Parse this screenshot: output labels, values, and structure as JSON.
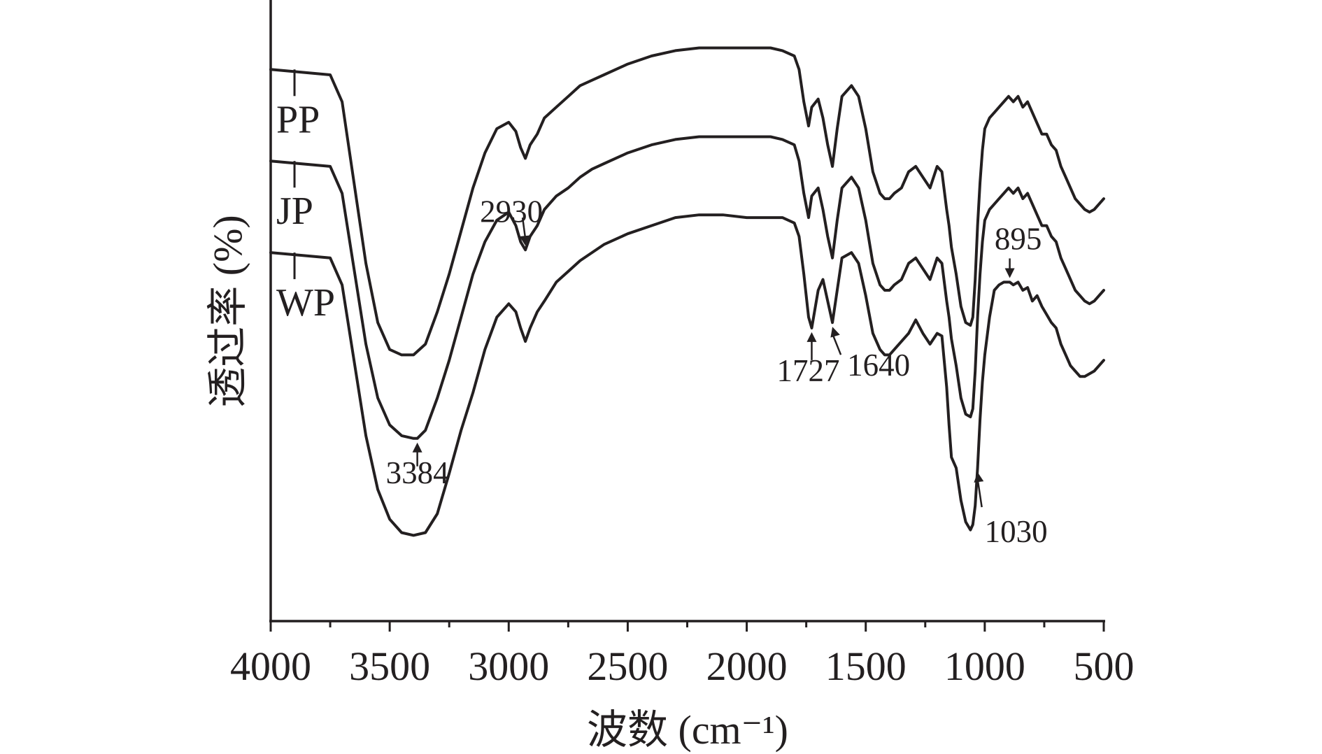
{
  "chart_data": {
    "type": "line",
    "xlabel": "波数 (cm⁻¹)",
    "ylabel": "透过率 (%)",
    "xlim": [
      4000,
      500
    ],
    "x_reversed": true,
    "xticks": [
      "4000",
      "3500",
      "3000",
      "2500",
      "2000",
      "1500",
      "1000",
      "500"
    ],
    "yticks_shown": false,
    "grid": false,
    "series": [
      {
        "name": "PP",
        "x": [
          4000,
          3750,
          3700,
          3650,
          3600,
          3550,
          3500,
          3450,
          3400,
          3350,
          3300,
          3250,
          3200,
          3150,
          3100,
          3050,
          3000,
          2970,
          2950,
          2930,
          2910,
          2880,
          2850,
          2800,
          2750,
          2700,
          2650,
          2600,
          2500,
          2400,
          2300,
          2200,
          2100,
          2000,
          1900,
          1850,
          1800,
          1780,
          1760,
          1740,
          1727,
          1700,
          1680,
          1660,
          1640,
          1620,
          1600,
          1560,
          1530,
          1500,
          1470,
          1440,
          1420,
          1400,
          1380,
          1350,
          1320,
          1290,
          1260,
          1230,
          1200,
          1180,
          1160,
          1150,
          1140,
          1120,
          1100,
          1080,
          1060,
          1050,
          1040,
          1030,
          1020,
          1010,
          1000,
          980,
          960,
          940,
          920,
          900,
          880,
          860,
          840,
          820,
          800,
          780,
          760,
          740,
          720,
          700,
          680,
          660,
          640,
          620,
          600,
          580,
          560,
          540,
          520,
          500
        ],
        "y": [
          91.0,
          90.0,
          85.0,
          70.0,
          55.0,
          44.0,
          39.0,
          38.0,
          38.0,
          40.0,
          46.0,
          53.0,
          61.0,
          69.0,
          75.5,
          80.0,
          81.2,
          79.5,
          76.5,
          74.5,
          77.0,
          79.0,
          82.0,
          84.0,
          86.0,
          88.0,
          89.0,
          90.0,
          92.0,
          93.5,
          94.5,
          95.0,
          95.0,
          95.0,
          95.0,
          94.5,
          93.5,
          91.0,
          85.0,
          80.5,
          84.0,
          85.5,
          82.0,
          77.0,
          73.0,
          80.0,
          86.0,
          88.0,
          86.0,
          80.0,
          72.0,
          68.0,
          67.0,
          67.0,
          68.0,
          69.0,
          72.0,
          73.0,
          71.0,
          69.0,
          73.0,
          72.0,
          65.0,
          62.0,
          58.0,
          53.0,
          47.0,
          44.0,
          43.5,
          45.0,
          52.0,
          62.0,
          70.0,
          76.0,
          80.0,
          82.0,
          83.0,
          84.0,
          85.0,
          86.0,
          85.0,
          86.0,
          84.0,
          85.0,
          83.0,
          81.0,
          79.0,
          79.0,
          77.0,
          76.0,
          73.0,
          71.0,
          69.0,
          67.0,
          66.0,
          65.0,
          64.5,
          65.0,
          66.0,
          67.0
        ]
      },
      {
        "name": "JP",
        "x": [
          4000,
          3750,
          3700,
          3650,
          3600,
          3550,
          3500,
          3450,
          3400,
          3384,
          3350,
          3300,
          3250,
          3200,
          3150,
          3100,
          3050,
          3000,
          2970,
          2950,
          2930,
          2910,
          2880,
          2850,
          2800,
          2750,
          2700,
          2650,
          2600,
          2500,
          2400,
          2300,
          2200,
          2100,
          2000,
          1900,
          1850,
          1800,
          1780,
          1760,
          1740,
          1727,
          1700,
          1680,
          1660,
          1640,
          1620,
          1600,
          1560,
          1530,
          1500,
          1470,
          1440,
          1420,
          1400,
          1380,
          1350,
          1320,
          1290,
          1260,
          1230,
          1200,
          1180,
          1160,
          1150,
          1140,
          1120,
          1100,
          1080,
          1060,
          1050,
          1040,
          1030,
          1020,
          1010,
          1000,
          980,
          960,
          940,
          920,
          900,
          880,
          860,
          840,
          820,
          800,
          780,
          760,
          740,
          720,
          700,
          680,
          660,
          640,
          620,
          600,
          580,
          560,
          540,
          520,
          500
        ],
        "y": [
          74.0,
          73.0,
          68.0,
          54.0,
          40.0,
          30.0,
          25.0,
          23.0,
          22.5,
          22.5,
          24.0,
          30.0,
          37.0,
          45.0,
          53.0,
          59.0,
          63.0,
          64.5,
          62.0,
          59.0,
          57.5,
          60.0,
          62.0,
          65.0,
          67.5,
          69.0,
          71.0,
          72.5,
          73.5,
          75.5,
          77.0,
          78.0,
          78.5,
          78.5,
          78.5,
          78.5,
          78.0,
          77.0,
          74.0,
          68.0,
          63.5,
          67.5,
          69.0,
          65.0,
          60.0,
          56.0,
          63.0,
          69.0,
          71.0,
          69.0,
          63.0,
          55.0,
          51.0,
          50.0,
          50.0,
          51.0,
          52.0,
          55.0,
          56.0,
          54.0,
          52.0,
          56.0,
          55.0,
          48.0,
          45.0,
          41.0,
          36.0,
          30.0,
          27.0,
          26.5,
          28.0,
          35.0,
          45.0,
          53.0,
          59.0,
          63.0,
          65.0,
          66.0,
          67.0,
          68.0,
          69.0,
          68.0,
          69.0,
          67.0,
          68.0,
          66.0,
          64.0,
          62.0,
          62.0,
          60.0,
          59.0,
          56.0,
          54.0,
          52.0,
          50.0,
          49.0,
          48.0,
          47.5,
          48.0,
          49.0,
          50.0
        ]
      },
      {
        "name": "WP",
        "x": [
          4000,
          3750,
          3700,
          3650,
          3600,
          3550,
          3500,
          3450,
          3400,
          3350,
          3300,
          3250,
          3200,
          3150,
          3100,
          3050,
          3000,
          2970,
          2950,
          2930,
          2910,
          2880,
          2850,
          2800,
          2750,
          2700,
          2650,
          2600,
          2500,
          2400,
          2300,
          2200,
          2100,
          2000,
          1900,
          1850,
          1800,
          1780,
          1760,
          1740,
          1727,
          1700,
          1680,
          1660,
          1640,
          1620,
          1600,
          1560,
          1530,
          1500,
          1470,
          1440,
          1420,
          1400,
          1380,
          1350,
          1320,
          1290,
          1260,
          1230,
          1200,
          1180,
          1160,
          1150,
          1140,
          1120,
          1100,
          1080,
          1060,
          1050,
          1040,
          1030,
          1020,
          1010,
          1000,
          980,
          960,
          940,
          920,
          900,
          895,
          880,
          860,
          840,
          820,
          800,
          780,
          760,
          740,
          720,
          700,
          680,
          660,
          640,
          620,
          600,
          580,
          560,
          540,
          520,
          500
        ],
        "y": [
          57.0,
          56.0,
          51.0,
          37.0,
          23.0,
          13.0,
          7.5,
          5.0,
          4.5,
          5.0,
          8.5,
          16.0,
          24.0,
          31.0,
          39.0,
          45.0,
          47.5,
          46.0,
          43.0,
          40.5,
          43.0,
          46.0,
          48.0,
          51.5,
          53.5,
          55.5,
          57.0,
          58.5,
          60.5,
          62.0,
          63.5,
          64.0,
          64.0,
          63.5,
          63.5,
          63.5,
          62.5,
          60.0,
          53.0,
          45.0,
          43.0,
          50.0,
          52.0,
          48.0,
          44.0,
          50.0,
          56.0,
          57.0,
          55.0,
          49.0,
          42.0,
          39.0,
          38.0,
          38.0,
          39.0,
          40.5,
          42.0,
          44.5,
          42.0,
          40.0,
          42.0,
          41.5,
          32.0,
          25.0,
          19.0,
          17.0,
          11.0,
          7.0,
          5.5,
          6.5,
          10.0,
          17.0,
          26.0,
          33.0,
          38.0,
          45.0,
          50.0,
          51.0,
          51.5,
          51.5,
          51.5,
          51.0,
          51.5,
          50.0,
          50.5,
          48.0,
          49.0,
          47.0,
          45.5,
          44.0,
          43.0,
          40.0,
          38.0,
          36.0,
          35.0,
          34.0,
          34.0,
          34.5,
          35.0,
          36.0,
          37.0
        ]
      }
    ],
    "annotations": [
      {
        "label": "3384",
        "x": 3384
      },
      {
        "label": "2930",
        "x": 2930
      },
      {
        "label": "1727",
        "x": 1727
      },
      {
        "label": "1640",
        "x": 1640
      },
      {
        "label": "1030",
        "x": 1030
      },
      {
        "label": "895",
        "x": 895
      }
    ]
  }
}
